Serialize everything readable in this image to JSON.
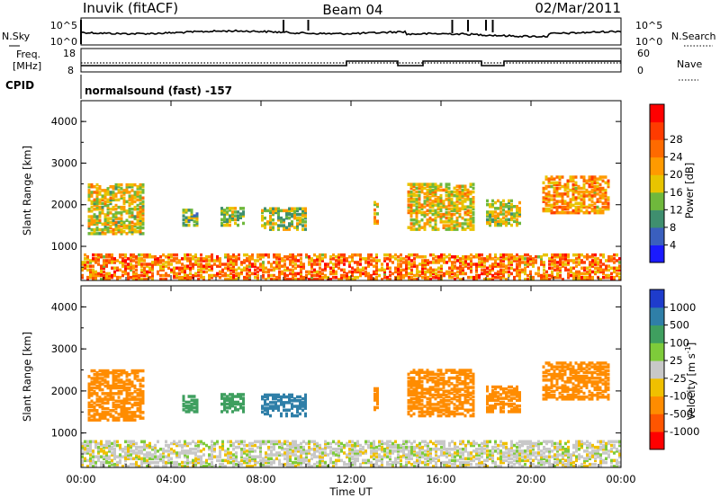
{
  "header": {
    "site": "Inuvik (fitACF)",
    "beam": "Beam 04",
    "date": "02/Mar/2011"
  },
  "noise_panel": {
    "left_label": "N.Sky",
    "right_label": "N.Search",
    "yticks_left": [
      "10^5",
      "10^0"
    ],
    "yticks_right": [
      "10^5",
      "10^0"
    ]
  },
  "freq_panel": {
    "left_label_line1": "Freq.",
    "left_label_line2": "[MHz]",
    "right_label": "Nave",
    "yticks_left": [
      "18",
      "8"
    ],
    "yticks_right": [
      "60",
      "0"
    ]
  },
  "cpid": {
    "label": "CPID",
    "value": "normalsound (fast) -157"
  },
  "x_axis": {
    "title": "Time UT",
    "ticks": [
      "00:00",
      "04:00",
      "08:00",
      "12:00",
      "16:00",
      "20:00",
      "00:00"
    ]
  },
  "chart_data": [
    {
      "type": "heatmap",
      "name": "power",
      "ylabel": "Slant Range [km]",
      "ylim": [
        180,
        4500
      ],
      "yticks": [
        "1000",
        "2000",
        "3000",
        "4000"
      ],
      "colorbar": {
        "title": "Power [dB]",
        "ticks": [
          "4",
          "8",
          "12",
          "16",
          "20",
          "24",
          "28"
        ],
        "colors": [
          "#1a1aff",
          "#3a5fbe",
          "#3f8f6f",
          "#6fb83c",
          "#e8c400",
          "#ff9a00",
          "#ff6a00",
          "#ff3b00",
          "#ff0000"
        ]
      },
      "x": [
        "00:00",
        "02:00",
        "04:00",
        "06:00",
        "08:00",
        "10:00",
        "12:00",
        "14:00",
        "16:00",
        "18:00",
        "20:00",
        "22:00",
        "24:00"
      ],
      "ground_scatter_range_km": [
        200,
        800
      ],
      "blobs": [
        {
          "t": [
            0.3,
            2.8
          ],
          "r": [
            1300,
            2500
          ],
          "db": 16
        },
        {
          "t": [
            4.5,
            5.2
          ],
          "r": [
            1500,
            1900
          ],
          "db": 12
        },
        {
          "t": [
            6.2,
            7.2
          ],
          "r": [
            1500,
            1950
          ],
          "db": 13
        },
        {
          "t": [
            8.0,
            10.0
          ],
          "r": [
            1400,
            1900
          ],
          "db": 14
        },
        {
          "t": [
            13.0,
            13.2
          ],
          "r": [
            1550,
            2050
          ],
          "db": 18
        },
        {
          "t": [
            14.5,
            17.5
          ],
          "r": [
            1400,
            2500
          ],
          "db": 17
        },
        {
          "t": [
            18.0,
            19.5
          ],
          "r": [
            1500,
            2100
          ],
          "db": 15
        },
        {
          "t": [
            20.5,
            23.5
          ],
          "r": [
            1800,
            2700
          ],
          "db": 20
        }
      ]
    },
    {
      "type": "heatmap",
      "name": "velocity",
      "ylabel": "Slant Range [km]",
      "ylim": [
        180,
        4500
      ],
      "yticks": [
        "1000",
        "2000",
        "3000",
        "4000"
      ],
      "colorbar": {
        "title": "Velocity [m s^-1]",
        "ticks": [
          "1000",
          "500",
          "100",
          "25",
          "-25",
          "-100",
          "-500",
          "-1000"
        ],
        "colors": [
          "#1e3ccc",
          "#2f7fa8",
          "#3f9f5f",
          "#7ecb3a",
          "#c8c8c8",
          "#f0c000",
          "#ff8c00",
          "#ff5500",
          "#ff0000"
        ]
      },
      "x": [
        "00:00",
        "02:00",
        "04:00",
        "06:00",
        "08:00",
        "10:00",
        "12:00",
        "14:00",
        "16:00",
        "18:00",
        "20:00",
        "22:00",
        "24:00"
      ],
      "ground_scatter_range_km": [
        200,
        800
      ],
      "blobs": [
        {
          "t": [
            0.3,
            2.8
          ],
          "r": [
            1300,
            2500
          ],
          "vel": -300
        },
        {
          "t": [
            4.5,
            5.2
          ],
          "r": [
            1500,
            1900
          ],
          "vel": 200
        },
        {
          "t": [
            6.2,
            7.2
          ],
          "r": [
            1500,
            1950
          ],
          "vel": 300
        },
        {
          "t": [
            8.0,
            10.0
          ],
          "r": [
            1400,
            1900
          ],
          "vel": 800
        },
        {
          "t": [
            13.0,
            13.2
          ],
          "r": [
            1550,
            2050
          ],
          "vel": -300
        },
        {
          "t": [
            14.5,
            17.5
          ],
          "r": [
            1400,
            2500
          ],
          "vel": -300
        },
        {
          "t": [
            18.0,
            19.5
          ],
          "r": [
            1500,
            2100
          ],
          "vel": -250
        },
        {
          "t": [
            20.5,
            23.5
          ],
          "r": [
            1800,
            2700
          ],
          "vel": -350
        }
      ]
    }
  ]
}
